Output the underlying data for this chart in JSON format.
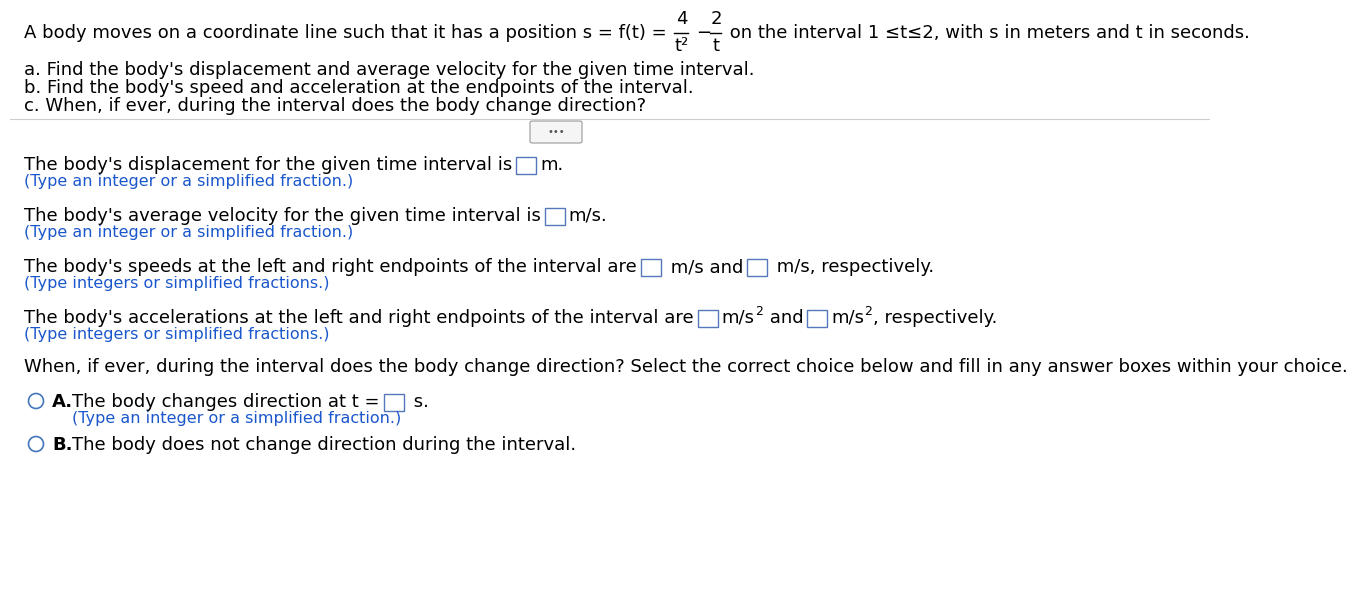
{
  "bg_color": "#ffffff",
  "text_color": "#000000",
  "blue_color": "#1a56cc",
  "black": "#000000",
  "header_pre": "A body moves on a coordinate line such that it has a position s = f(t) = ",
  "header_post": " on the interval 1 ≤t≤2, with s in meters and t in seconds.",
  "line_a": "a. Find the body's displacement and average velocity for the given time interval.",
  "line_b": "b. Find the body's speed and acceleration at the endpoints of the interval.",
  "line_c": "c. When, if ever, during the interval does the body change direction?",
  "q1_text": "The body's displacement for the given time interval is",
  "q1_unit": "m.",
  "q1_hint": "(Type an integer or a simplified fraction.)",
  "q2_text": "The body's average velocity for the given time interval is",
  "q2_unit": "m/s.",
  "q2_hint": "(Type an integer or a simplified fraction.)",
  "q3_pre": "The body's speeds at the left and right endpoints of the interval are",
  "q3_mid": " m/s and",
  "q3_post": " m/s, respectively.",
  "q3_hint": "(Type integers or simplified fractions.)",
  "q4_pre": "The body's accelerations at the left and right endpoints of the interval are",
  "q4_hint": "(Type integers or simplified fractions.)",
  "q5_text": "When, if ever, during the interval does the body change direction? Select the correct choice below and fill in any answer boxes within your choice.",
  "optA_text": "The body changes direction at t =",
  "optA_unit": " s.",
  "optA_hint": "(Type an integer or a simplified fraction.)",
  "optB_text": "The body does not change direction during the interval.",
  "fs_main": 13.0,
  "fs_hint": 11.5,
  "fs_label": 13.0
}
